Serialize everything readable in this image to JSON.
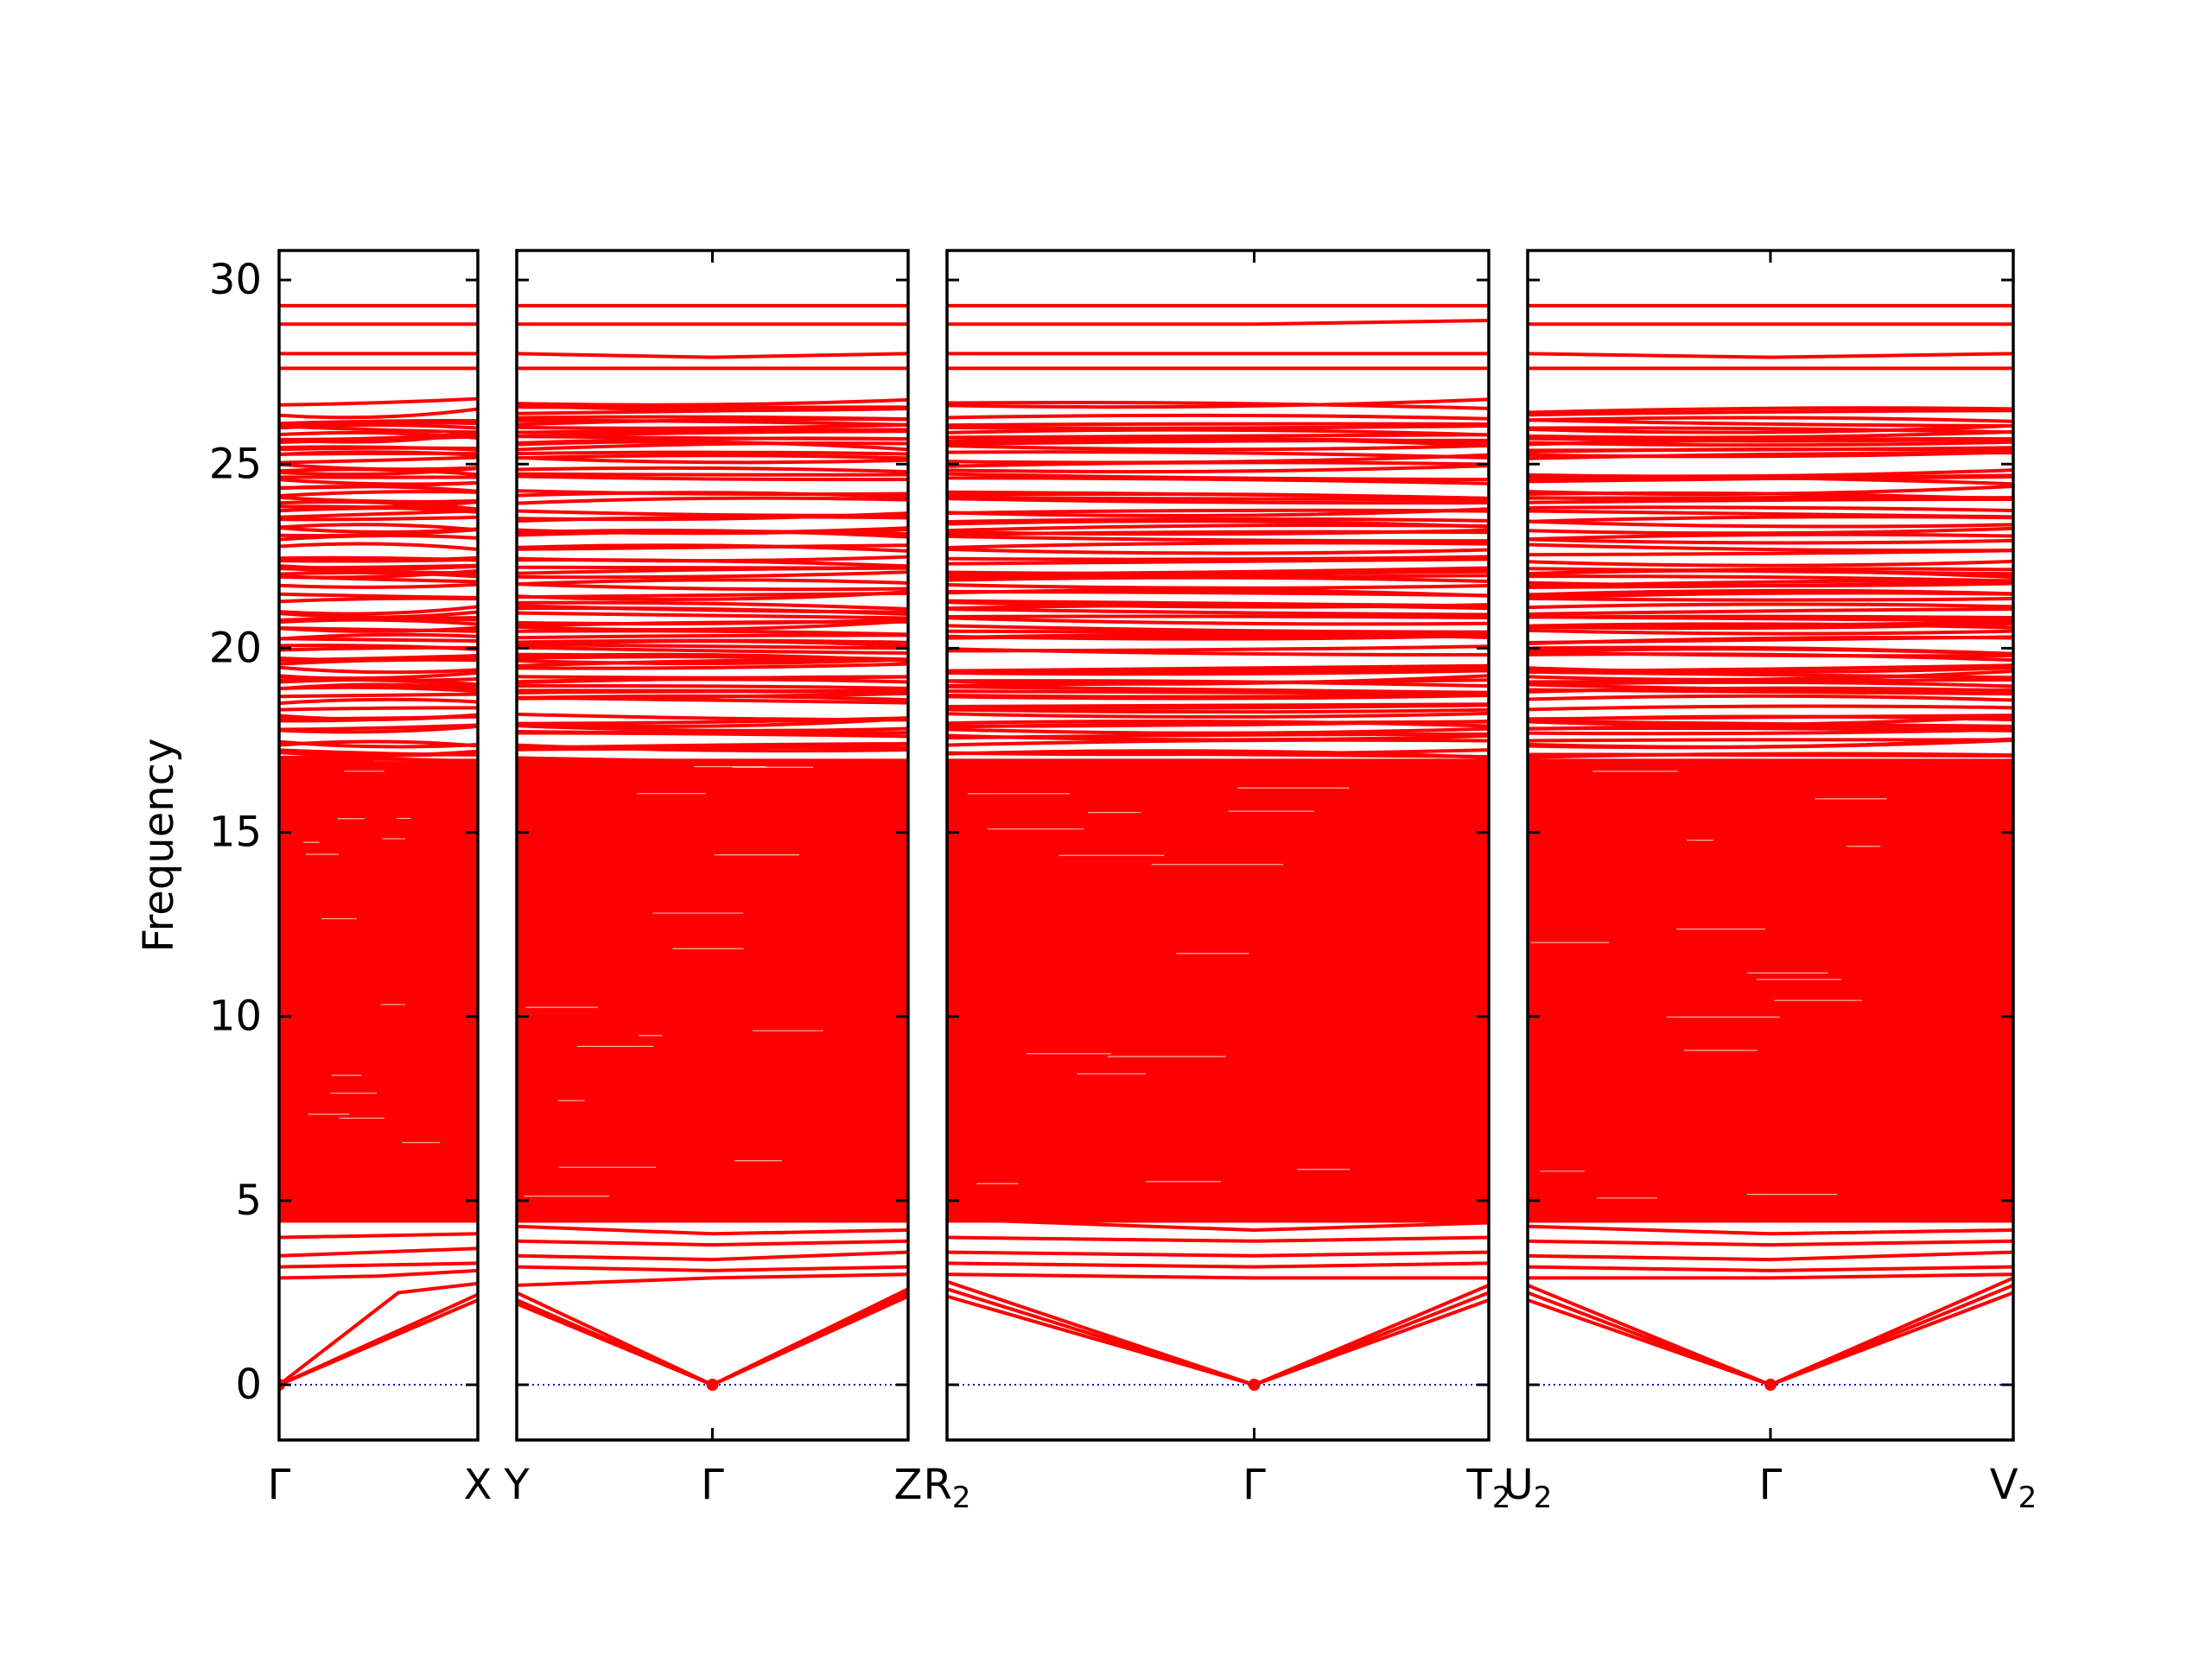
{
  "chart_data": {
    "type": "line",
    "ylabel": "Frequency",
    "ylim": [
      -1.5,
      30.8
    ],
    "yticks": [
      0,
      5,
      10,
      15,
      20,
      25,
      30
    ],
    "grid": false,
    "colors": {
      "bands": "#ff0000",
      "zero_line": "#0000cc",
      "axes": "#000000"
    },
    "panels": [
      {
        "points": [
          {
            "label": "Γ",
            "sub": ""
          },
          {
            "label": "X",
            "sub": ""
          }
        ],
        "series": [
          {
            "name": "",
            "x": [
              0,
              1
            ],
            "y": [
              0,
              2.3
            ]
          },
          {
            "name": "",
            "x": [
              0,
              1
            ],
            "y": [
              0,
              2.45
            ]
          },
          {
            "name": "",
            "x": [
              0,
              0.6,
              1
            ],
            "y": [
              0,
              2.5,
              2.75
            ]
          },
          {
            "name": "",
            "x": [
              0,
              0.5,
              1
            ],
            "y": [
              2.9,
              2.95,
              3.1
            ]
          },
          {
            "name": "",
            "x": [
              0,
              1
            ],
            "y": [
              3.2,
              3.3
            ]
          },
          {
            "name": "",
            "x": [
              0,
              1
            ],
            "y": [
              3.5,
              3.7
            ]
          },
          {
            "name": "",
            "x": [
              0,
              1
            ],
            "y": [
              4.0,
              4.1
            ]
          },
          {
            "name": "",
            "x": [
              0,
              1
            ],
            "y": [
              27.6,
              27.6
            ]
          },
          {
            "name": "",
            "x": [
              0,
              1
            ],
            "y": [
              28.0,
              28.0
            ]
          },
          {
            "name": "",
            "x": [
              0,
              1
            ],
            "y": [
              28.8,
              28.8
            ]
          },
          {
            "name": "",
            "x": [
              0,
              1
            ],
            "y": [
              29.3,
              29.3
            ]
          }
        ]
      },
      {
        "points": [
          {
            "label": "Y",
            "sub": ""
          },
          {
            "label": "Γ",
            "sub": ""
          },
          {
            "label": "Z",
            "sub": ""
          }
        ],
        "series": [
          {
            "name": "",
            "x": [
              0,
              0.5,
              1
            ],
            "y": [
              2.2,
              0,
              2.4
            ]
          },
          {
            "name": "",
            "x": [
              0,
              0.5,
              1
            ],
            "y": [
              2.3,
              0,
              2.5
            ]
          },
          {
            "name": "",
            "x": [
              0,
              0.5,
              1
            ],
            "y": [
              2.5,
              0,
              2.6
            ]
          },
          {
            "name": "",
            "x": [
              0,
              0.5,
              1
            ],
            "y": [
              2.7,
              2.9,
              3.0
            ]
          },
          {
            "name": "",
            "x": [
              0,
              0.5,
              1
            ],
            "y": [
              3.2,
              3.1,
              3.2
            ]
          },
          {
            "name": "",
            "x": [
              0,
              0.5,
              1
            ],
            "y": [
              3.5,
              3.4,
              3.6
            ]
          },
          {
            "name": "",
            "x": [
              0,
              0.5,
              1
            ],
            "y": [
              3.9,
              3.8,
              3.9
            ]
          },
          {
            "name": "",
            "x": [
              0,
              0.5,
              1
            ],
            "y": [
              4.3,
              4.1,
              4.2
            ]
          },
          {
            "name": "",
            "x": [
              0,
              1
            ],
            "y": [
              27.6,
              27.6
            ]
          },
          {
            "name": "",
            "x": [
              0,
              0.5,
              1
            ],
            "y": [
              28.0,
              27.9,
              28.0
            ]
          },
          {
            "name": "",
            "x": [
              0,
              1
            ],
            "y": [
              28.8,
              28.8
            ]
          },
          {
            "name": "",
            "x": [
              0,
              1
            ],
            "y": [
              29.3,
              29.3
            ]
          }
        ]
      },
      {
        "points": [
          {
            "label": "R",
            "sub": "2"
          },
          {
            "label": "Γ",
            "sub": ""
          },
          {
            "label": "T",
            "sub": "2"
          }
        ],
        "series": [
          {
            "name": "",
            "x": [
              0,
              0.567,
              1
            ],
            "y": [
              2.4,
              0,
              2.3
            ]
          },
          {
            "name": "",
            "x": [
              0,
              0.567,
              1
            ],
            "y": [
              2.6,
              0,
              2.5
            ]
          },
          {
            "name": "",
            "x": [
              0,
              0.567,
              1
            ],
            "y": [
              2.8,
              0,
              2.7
            ]
          },
          {
            "name": "",
            "x": [
              0,
              0.567,
              1
            ],
            "y": [
              3.0,
              2.9,
              2.9
            ]
          },
          {
            "name": "",
            "x": [
              0,
              0.567,
              1
            ],
            "y": [
              3.3,
              3.2,
              3.3
            ]
          },
          {
            "name": "",
            "x": [
              0,
              0.567,
              1
            ],
            "y": [
              3.6,
              3.5,
              3.6
            ]
          },
          {
            "name": "",
            "x": [
              0,
              0.567,
              1
            ],
            "y": [
              4.0,
              3.9,
              4.0
            ]
          },
          {
            "name": "",
            "x": [
              0,
              0.567,
              1
            ],
            "y": [
              4.5,
              4.2,
              4.4
            ]
          },
          {
            "name": "",
            "x": [
              0,
              1
            ],
            "y": [
              27.6,
              27.6
            ]
          },
          {
            "name": "",
            "x": [
              0,
              1
            ],
            "y": [
              28.0,
              28.0
            ]
          },
          {
            "name": "",
            "x": [
              0,
              0.567,
              1
            ],
            "y": [
              28.8,
              28.8,
              28.9
            ]
          },
          {
            "name": "",
            "x": [
              0,
              1
            ],
            "y": [
              29.3,
              29.3
            ]
          }
        ]
      },
      {
        "points": [
          {
            "label": "U",
            "sub": "2"
          },
          {
            "label": "Γ",
            "sub": ""
          },
          {
            "label": "V",
            "sub": "2"
          }
        ],
        "series": [
          {
            "name": "",
            "x": [
              0,
              0.5,
              1
            ],
            "y": [
              2.3,
              0,
              2.5
            ]
          },
          {
            "name": "",
            "x": [
              0,
              0.5,
              1
            ],
            "y": [
              2.5,
              0,
              2.7
            ]
          },
          {
            "name": "",
            "x": [
              0,
              0.5,
              1
            ],
            "y": [
              2.7,
              0,
              2.9
            ]
          },
          {
            "name": "",
            "x": [
              0,
              0.5,
              1
            ],
            "y": [
              2.9,
              2.9,
              3.0
            ]
          },
          {
            "name": "",
            "x": [
              0,
              0.5,
              1
            ],
            "y": [
              3.2,
              3.1,
              3.2
            ]
          },
          {
            "name": "",
            "x": [
              0,
              0.5,
              1
            ],
            "y": [
              3.5,
              3.4,
              3.6
            ]
          },
          {
            "name": "",
            "x": [
              0,
              0.5,
              1
            ],
            "y": [
              3.9,
              3.8,
              3.9
            ]
          },
          {
            "name": "",
            "x": [
              0,
              0.5,
              1
            ],
            "y": [
              4.3,
              4.1,
              4.2
            ]
          },
          {
            "name": "",
            "x": [
              0,
              1
            ],
            "y": [
              27.6,
              27.6
            ]
          },
          {
            "name": "",
            "x": [
              0,
              0.5,
              1
            ],
            "y": [
              28.0,
              27.9,
              28.0
            ]
          },
          {
            "name": "",
            "x": [
              0,
              1
            ],
            "y": [
              28.8,
              28.8
            ]
          },
          {
            "name": "",
            "x": [
              0,
              1
            ],
            "y": [
              29.3,
              29.3
            ]
          }
        ]
      }
    ],
    "dense_band": {
      "ymin": 4.4,
      "ymax": 17.0
    },
    "band_levels": [
      17.1,
      17.4,
      17.8,
      18.1,
      18.5,
      18.8,
      19.1,
      19.5,
      19.9,
      20.2,
      20.6,
      21.0,
      21.4,
      21.8,
      22.1,
      22.4,
      22.8,
      23.1,
      23.4,
      23.8,
      24.2,
      24.7,
      25.1,
      25.4,
      25.7,
      26.1,
      26.5
    ]
  }
}
